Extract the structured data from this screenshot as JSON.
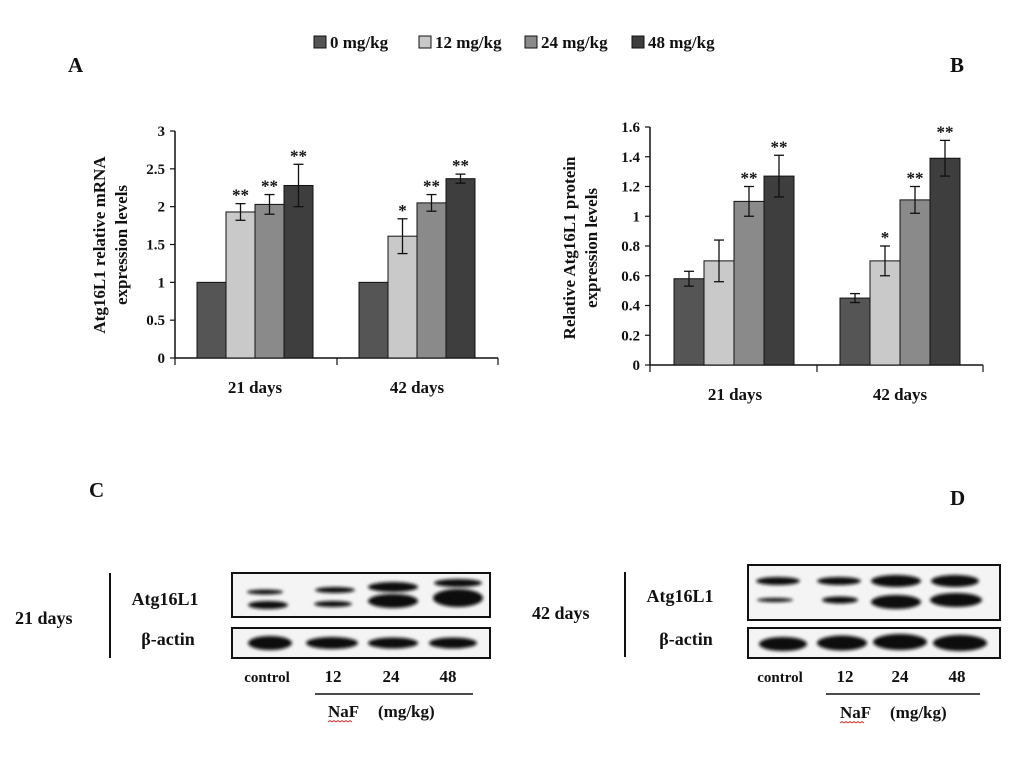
{
  "legend": {
    "entries": [
      "0 mg/kg",
      "12 mg/kg",
      "24 mg/kg",
      "48 mg/kg"
    ],
    "colors": [
      "#555555",
      "#c9c9c9",
      "#8a8a8a",
      "#3e3e3e"
    ]
  },
  "panel_labels": {
    "a": "A",
    "b": "B",
    "c": "C",
    "d": "D"
  },
  "chart_data": [
    {
      "type": "bar",
      "title": "",
      "ylabel_line1": "Atg16L1 relative mRNA",
      "ylabel_line2": "expression levels",
      "xlabel": "",
      "categories": [
        "21 days",
        "42 days"
      ],
      "ylim": [
        0,
        3
      ],
      "yticks": [
        "0",
        "0.5",
        "1",
        "1.5",
        "2",
        "2.5",
        "3"
      ],
      "ytick_values": [
        0,
        0.5,
        1,
        1.5,
        2,
        2.5,
        3
      ],
      "series": [
        {
          "name": "0 mg/kg",
          "values": [
            1.0,
            1.0
          ],
          "errors": [
            0,
            0
          ],
          "sig": [
            "",
            ""
          ]
        },
        {
          "name": "12 mg/kg",
          "values": [
            1.93,
            1.61
          ],
          "errors": [
            0.11,
            0.23
          ],
          "sig": [
            "**",
            "*"
          ]
        },
        {
          "name": "24 mg/kg",
          "values": [
            2.03,
            2.05
          ],
          "errors": [
            0.13,
            0.11
          ],
          "sig": [
            "**",
            "**"
          ]
        },
        {
          "name": "48 mg/kg",
          "values": [
            2.28,
            2.37
          ],
          "errors": [
            0.28,
            0.06
          ],
          "sig": [
            "**",
            "**"
          ]
        }
      ],
      "legend_position": "top"
    },
    {
      "type": "bar",
      "title": "",
      "ylabel_line1": "Relative Atg16L1 protein",
      "ylabel_line2": "expression levels",
      "xlabel": "",
      "categories": [
        "21 days",
        "42 days"
      ],
      "ylim": [
        0,
        1.6
      ],
      "yticks": [
        "0",
        "0.2",
        "0.4",
        "0.6",
        "0.8",
        "1",
        "1.2",
        "1.4",
        "1.6"
      ],
      "ytick_values": [
        0,
        0.2,
        0.4,
        0.6,
        0.8,
        1,
        1.2,
        1.4,
        1.6
      ],
      "series": [
        {
          "name": "0 mg/kg",
          "values": [
            0.58,
            0.45
          ],
          "errors": [
            0.05,
            0.03
          ],
          "sig": [
            "",
            ""
          ]
        },
        {
          "name": "12 mg/kg",
          "values": [
            0.7,
            0.7
          ],
          "errors": [
            0.14,
            0.1
          ],
          "sig": [
            "",
            "*"
          ]
        },
        {
          "name": "24 mg/kg",
          "values": [
            1.1,
            1.11
          ],
          "errors": [
            0.1,
            0.09
          ],
          "sig": [
            "**",
            "**"
          ]
        },
        {
          "name": "48 mg/kg",
          "values": [
            1.27,
            1.39
          ],
          "errors": [
            0.14,
            0.12
          ],
          "sig": [
            "**",
            "**"
          ]
        }
      ],
      "legend_position": "top"
    }
  ],
  "blots": [
    {
      "time": "21 days",
      "target": "Atg16L1",
      "loading": "β-actin",
      "lanes": [
        "control",
        "12",
        "24",
        "48"
      ],
      "treatment": "NaF",
      "unit": "(mg/kg)"
    },
    {
      "time": "42 days",
      "target": "Atg16L1",
      "loading": "β-actin",
      "lanes": [
        "control",
        "12",
        "24",
        "48"
      ],
      "treatment": "NaF",
      "unit": "(mg/kg)"
    }
  ]
}
